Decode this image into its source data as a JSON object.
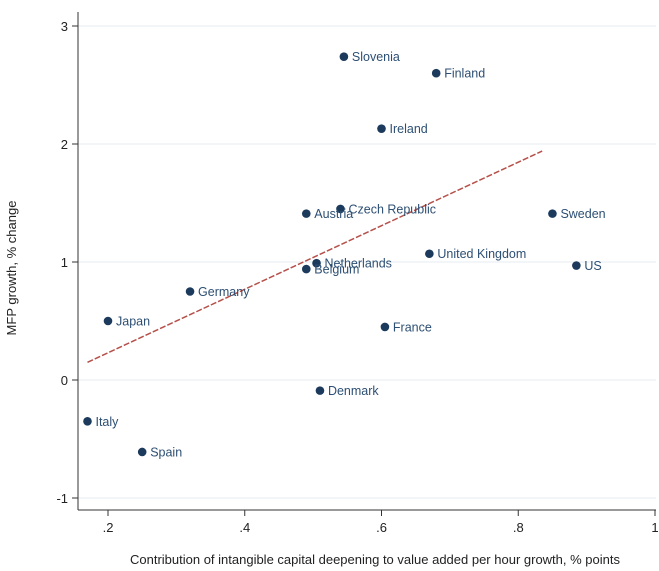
{
  "chart_data": {
    "type": "scatter",
    "title": "",
    "xlabel": "Contribution of intangible capital deepening to value added per hour growth, % points",
    "ylabel": "MFP growth, % change",
    "xlim": [
      0.15,
      1.0
    ],
    "ylim": [
      -1.1,
      3.1
    ],
    "x_ticks": [
      0.2,
      0.4,
      0.6,
      0.8,
      1.0
    ],
    "x_tick_labels": [
      ".2",
      ".4",
      ".6",
      ".8",
      "1"
    ],
    "y_ticks": [
      -1,
      0,
      1,
      2,
      3
    ],
    "y_tick_labels": [
      "-1",
      "0",
      "1",
      "2",
      "3"
    ],
    "grid": "horizontal",
    "legend": "none",
    "points": [
      {
        "label": "Slovenia",
        "x": 0.545,
        "y": 2.74
      },
      {
        "label": "Finland",
        "x": 0.68,
        "y": 2.6
      },
      {
        "label": "Ireland",
        "x": 0.6,
        "y": 2.13
      },
      {
        "label": "Czech Republic",
        "x": 0.54,
        "y": 1.45
      },
      {
        "label": "Austria",
        "x": 0.49,
        "y": 1.41
      },
      {
        "label": "Sweden",
        "x": 0.85,
        "y": 1.41
      },
      {
        "label": "United Kingdom",
        "x": 0.67,
        "y": 1.07
      },
      {
        "label": "US",
        "x": 0.885,
        "y": 0.97
      },
      {
        "label": "Netherlands",
        "x": 0.505,
        "y": 0.99
      },
      {
        "label": "Belgium",
        "x": 0.49,
        "y": 0.94
      },
      {
        "label": "Germany",
        "x": 0.32,
        "y": 0.75
      },
      {
        "label": "Japan",
        "x": 0.2,
        "y": 0.5
      },
      {
        "label": "France",
        "x": 0.605,
        "y": 0.45
      },
      {
        "label": "Denmark",
        "x": 0.51,
        "y": -0.09
      },
      {
        "label": "Italy",
        "x": 0.17,
        "y": -0.35
      },
      {
        "label": "Spain",
        "x": 0.25,
        "y": -0.61
      }
    ],
    "fit_line": {
      "x": [
        0.17,
        0.835
      ],
      "y": [
        0.15,
        1.94
      ]
    },
    "colors": {
      "marker": "#1b3a5c",
      "label": "#2d4f73",
      "fit_line": "#b5504a",
      "grid": "#e6ecf0",
      "axis": "#333333"
    }
  }
}
